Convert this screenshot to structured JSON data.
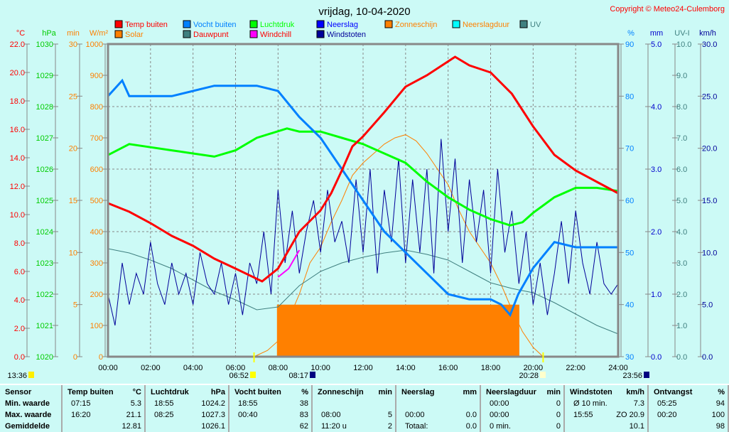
{
  "title": "vrijdag, 10-04-2020",
  "copyright": "Copyright © Meteo24-Culemborg",
  "legend": [
    {
      "label": "Temp buiten",
      "color": "#ff0000",
      "text": "#ff0000"
    },
    {
      "label": "Solar",
      "color": "#ff8000",
      "text": "#ff8000"
    },
    {
      "label": "Vocht buiten",
      "color": "#0080ff",
      "text": "#0080ff"
    },
    {
      "label": "Dauwpunt",
      "color": "#408080",
      "text": "#ff0000"
    },
    {
      "label": "Luchtdruk",
      "color": "#00ff00",
      "text": "#00ff00"
    },
    {
      "label": "Windchill",
      "color": "#ff00ff",
      "text": "#ff0000"
    },
    {
      "label": "Neerslag",
      "color": "#0000ff",
      "text": "#0000ff"
    },
    {
      "label": "Windstoten",
      "color": "#000099",
      "text": "#000099"
    },
    {
      "label": "Zonneschijn",
      "color": "#ff8000",
      "text": "#ff8000"
    },
    {
      "label": "Neerslagduur",
      "color": "#00ffff",
      "text": "#ff8000"
    },
    {
      "label": "UV",
      "color": "#408080",
      "text": "#408080"
    }
  ],
  "chart_data": {
    "type": "line",
    "title": "vrijdag, 10-04-2020",
    "x_ticks": [
      "00:00",
      "02:00",
      "04:00",
      "06:00",
      "08:00",
      "10:00",
      "12:00",
      "14:00",
      "16:00",
      "18:00",
      "20:00",
      "22:00",
      "24:00"
    ],
    "axes": {
      "left": [
        {
          "unit": "°C",
          "range": [
            0,
            22
          ],
          "step": 2,
          "decimals": 1,
          "color": "#ff0000"
        },
        {
          "unit": "hPa",
          "range": [
            1020,
            1030
          ],
          "step": 1,
          "decimals": 0,
          "color": "#00cc00"
        },
        {
          "unit": "min",
          "range": [
            0,
            30
          ],
          "step": 5,
          "decimals": 0,
          "color": "#ff8000"
        },
        {
          "unit": "W/m²",
          "range": [
            0,
            1000
          ],
          "step": 100,
          "decimals": 0,
          "color": "#ff8000"
        }
      ],
      "right": [
        {
          "unit": "%",
          "range": [
            30,
            90
          ],
          "step": 10,
          "decimals": 0,
          "color": "#0080ff"
        },
        {
          "unit": "mm",
          "range": [
            0,
            5
          ],
          "step": 1,
          "decimals": 1,
          "color": "#0000cc"
        },
        {
          "unit": "UV-I",
          "range": [
            0,
            10
          ],
          "step": 1,
          "decimals": 1,
          "color": "#408080"
        },
        {
          "unit": "km/h",
          "range": [
            0,
            30
          ],
          "step": 5,
          "decimals": 1,
          "color": "#000099"
        }
      ]
    },
    "grid": true,
    "series": [
      {
        "name": "Zonneschijn",
        "axis": "min",
        "type": "area",
        "color": "#ff8000",
        "points": [
          [
            7.95,
            0
          ],
          [
            7.95,
            5
          ],
          [
            19.35,
            5
          ],
          [
            19.35,
            0
          ]
        ]
      },
      {
        "name": "Solar",
        "axis": "W/m²",
        "color": "#ff8000",
        "points": [
          [
            6.87,
            0
          ],
          [
            7.5,
            20
          ],
          [
            8,
            50
          ],
          [
            8.5,
            120
          ],
          [
            9,
            200
          ],
          [
            9.5,
            300
          ],
          [
            10,
            350
          ],
          [
            10.5,
            430
          ],
          [
            11,
            500
          ],
          [
            11.5,
            580
          ],
          [
            12,
            620
          ],
          [
            12.5,
            650
          ],
          [
            13,
            680
          ],
          [
            13.5,
            700
          ],
          [
            14,
            710
          ],
          [
            14.5,
            690
          ],
          [
            15,
            650
          ],
          [
            15.5,
            600
          ],
          [
            16,
            550
          ],
          [
            16.5,
            470
          ],
          [
            17,
            400
          ],
          [
            17.5,
            350
          ],
          [
            18,
            300
          ],
          [
            18.5,
            230
          ],
          [
            19,
            150
          ],
          [
            19.5,
            80
          ],
          [
            20,
            30
          ],
          [
            20.47,
            0
          ]
        ]
      },
      {
        "name": "Dauwpunt",
        "axis": "°C",
        "color": "#408080",
        "points": [
          [
            0,
            7.6
          ],
          [
            1,
            7.3
          ],
          [
            2,
            6.8
          ],
          [
            3,
            6.2
          ],
          [
            4,
            5.4
          ],
          [
            5,
            4.6
          ],
          [
            6,
            4.0
          ],
          [
            7,
            3.3
          ],
          [
            8,
            3.5
          ],
          [
            9,
            5.0
          ],
          [
            10,
            6.0
          ],
          [
            11,
            6.6
          ],
          [
            12,
            7.0
          ],
          [
            13,
            7.3
          ],
          [
            14,
            7.5
          ],
          [
            15,
            7.2
          ],
          [
            16,
            6.8
          ],
          [
            17,
            6.0
          ],
          [
            18,
            5.2
          ],
          [
            19,
            4.8
          ],
          [
            20,
            4.5
          ],
          [
            21,
            3.8
          ],
          [
            22,
            3.0
          ],
          [
            23,
            2.2
          ],
          [
            24,
            1.6
          ]
        ]
      },
      {
        "name": "Windstoten",
        "axis": "km/h",
        "color": "#000099",
        "points": [
          [
            0,
            6
          ],
          [
            0.33,
            3
          ],
          [
            0.67,
            9
          ],
          [
            1,
            5
          ],
          [
            1.33,
            8
          ],
          [
            1.67,
            6
          ],
          [
            2,
            11
          ],
          [
            2.33,
            7
          ],
          [
            2.67,
            5
          ],
          [
            3,
            9
          ],
          [
            3.33,
            6
          ],
          [
            3.67,
            8
          ],
          [
            4,
            5
          ],
          [
            4.33,
            10
          ],
          [
            4.67,
            7
          ],
          [
            5,
            6
          ],
          [
            5.33,
            9
          ],
          [
            5.67,
            5
          ],
          [
            6,
            8
          ],
          [
            6.33,
            4
          ],
          [
            6.67,
            9
          ],
          [
            7,
            7
          ],
          [
            7.33,
            12
          ],
          [
            7.67,
            6
          ],
          [
            8,
            16
          ],
          [
            8.33,
            9
          ],
          [
            8.67,
            14
          ],
          [
            9,
            8
          ],
          [
            9.33,
            12
          ],
          [
            9.67,
            15
          ],
          [
            10,
            10
          ],
          [
            10.33,
            16
          ],
          [
            10.67,
            11
          ],
          [
            11,
            13
          ],
          [
            11.33,
            9
          ],
          [
            11.67,
            17
          ],
          [
            12,
            10
          ],
          [
            12.33,
            18
          ],
          [
            12.67,
            8
          ],
          [
            13,
            16
          ],
          [
            13.33,
            11
          ],
          [
            13.67,
            19
          ],
          [
            14,
            9
          ],
          [
            14.33,
            17
          ],
          [
            14.67,
            10
          ],
          [
            15,
            18
          ],
          [
            15.33,
            8
          ],
          [
            15.67,
            20.9
          ],
          [
            16,
            12
          ],
          [
            16.33,
            19
          ],
          [
            16.67,
            9
          ],
          [
            17,
            17
          ],
          [
            17.33,
            11
          ],
          [
            17.67,
            16
          ],
          [
            18,
            8
          ],
          [
            18.33,
            18
          ],
          [
            18.67,
            10
          ],
          [
            19,
            14
          ],
          [
            19.33,
            7
          ],
          [
            19.67,
            12
          ],
          [
            20,
            5
          ],
          [
            20.33,
            9
          ],
          [
            20.67,
            4
          ],
          [
            21,
            8
          ],
          [
            21.33,
            13
          ],
          [
            21.67,
            7
          ],
          [
            22,
            14
          ],
          [
            22.33,
            9
          ],
          [
            22.67,
            6
          ],
          [
            23,
            11
          ],
          [
            23.33,
            7
          ],
          [
            23.67,
            6
          ],
          [
            24,
            7
          ]
        ]
      },
      {
        "name": "Luchtdruk",
        "axis": "hPa",
        "color": "#00ff00",
        "points": [
          [
            0,
            1026.45
          ],
          [
            1,
            1026.8
          ],
          [
            2,
            1026.7
          ],
          [
            3,
            1026.6
          ],
          [
            4,
            1026.5
          ],
          [
            5,
            1026.4
          ],
          [
            6,
            1026.6
          ],
          [
            7,
            1027.0
          ],
          [
            8.42,
            1027.3
          ],
          [
            9,
            1027.2
          ],
          [
            10,
            1027.2
          ],
          [
            11,
            1027.0
          ],
          [
            12,
            1026.8
          ],
          [
            13,
            1026.5
          ],
          [
            14,
            1026.2
          ],
          [
            15,
            1025.6
          ],
          [
            16,
            1025.1
          ],
          [
            17,
            1024.7
          ],
          [
            18,
            1024.4
          ],
          [
            18.92,
            1024.2
          ],
          [
            19.5,
            1024.3
          ],
          [
            20,
            1024.6
          ],
          [
            21,
            1025.1
          ],
          [
            22,
            1025.4
          ],
          [
            23,
            1025.4
          ],
          [
            24,
            1025.3
          ]
        ]
      },
      {
        "name": "Vocht buiten",
        "axis": "%",
        "color": "#0080ff",
        "points": [
          [
            0,
            80
          ],
          [
            0.67,
            83
          ],
          [
            1,
            80
          ],
          [
            2,
            80
          ],
          [
            3,
            80
          ],
          [
            4,
            81
          ],
          [
            5,
            82
          ],
          [
            6,
            82
          ],
          [
            7,
            82
          ],
          [
            8,
            81
          ],
          [
            9,
            76
          ],
          [
            10,
            72
          ],
          [
            11,
            66
          ],
          [
            12,
            60
          ],
          [
            13,
            54
          ],
          [
            14,
            50
          ],
          [
            15,
            46
          ],
          [
            16,
            42
          ],
          [
            17,
            41
          ],
          [
            18,
            41
          ],
          [
            18.5,
            40
          ],
          [
            18.92,
            38
          ],
          [
            19.3,
            42
          ],
          [
            20,
            47
          ],
          [
            21,
            52
          ],
          [
            22,
            51
          ],
          [
            23,
            51
          ],
          [
            24,
            51
          ]
        ]
      },
      {
        "name": "Windchill",
        "axis": "°C",
        "color": "#ff00ff",
        "points": [
          [
            8,
            5.6
          ],
          [
            8.5,
            6.2
          ],
          [
            9,
            7.5
          ]
        ]
      },
      {
        "name": "Temp buiten",
        "axis": "°C",
        "color": "#ff0000",
        "points": [
          [
            0,
            10.8
          ],
          [
            1,
            10.2
          ],
          [
            2,
            9.4
          ],
          [
            3,
            8.5
          ],
          [
            4,
            7.8
          ],
          [
            5,
            6.9
          ],
          [
            6,
            6.2
          ],
          [
            7.25,
            5.3
          ],
          [
            8,
            6.2
          ],
          [
            8.5,
            7.5
          ],
          [
            9,
            8.8
          ],
          [
            10,
            10.3
          ],
          [
            10.5,
            11.5
          ],
          [
            11,
            13.1
          ],
          [
            11.5,
            14.8
          ],
          [
            12,
            15.5
          ],
          [
            13,
            17.2
          ],
          [
            14,
            19.0
          ],
          [
            15,
            19.8
          ],
          [
            16.33,
            21.1
          ],
          [
            17,
            20.5
          ],
          [
            18,
            20.0
          ],
          [
            19,
            18.5
          ],
          [
            20,
            16.2
          ],
          [
            21,
            14.2
          ],
          [
            22,
            13.1
          ],
          [
            23,
            12.3
          ],
          [
            24,
            11.5
          ]
        ]
      }
    ],
    "markers": {
      "moonrise": "13:36",
      "sunrise": "06:52",
      "sunrise2": "08:17",
      "sunset": "20:28",
      "moonset": "23:56"
    }
  },
  "stats": {
    "columns": [
      {
        "head": [
          "Sensor",
          ""
        ],
        "rows": [
          [
            "Min. waarde",
            ""
          ],
          [
            "Max. waarde",
            ""
          ],
          [
            "Gemiddelde",
            ""
          ]
        ],
        "bold": true
      },
      {
        "head": [
          "Temp buiten",
          "°C"
        ],
        "rows": [
          [
            "07:15",
            "5.3"
          ],
          [
            "16:20",
            "21.1"
          ],
          [
            "",
            "12.81"
          ]
        ]
      },
      {
        "head": [
          "Luchtdruk",
          "hPa"
        ],
        "rows": [
          [
            "18:55",
            "1024.2"
          ],
          [
            "08:25",
            "1027.3"
          ],
          [
            "",
            "1026.1"
          ]
        ]
      },
      {
        "head": [
          "Vocht buiten",
          "%"
        ],
        "rows": [
          [
            "18:55",
            "38"
          ],
          [
            "00:40",
            "83"
          ],
          [
            "",
            "62"
          ]
        ]
      },
      {
        "head": [
          "Zonneschijn",
          "min"
        ],
        "rows": [
          [
            "",
            ""
          ],
          [
            "08:00",
            "5"
          ],
          [
            "11:20 u",
            "2"
          ]
        ]
      },
      {
        "head": [
          "Neerslag",
          "mm"
        ],
        "rows": [
          [
            "",
            ""
          ],
          [
            "00:00",
            "0.0"
          ],
          [
            "Totaal:",
            "0.0"
          ]
        ]
      },
      {
        "head": [
          "Neerslagduur",
          "min"
        ],
        "rows": [
          [
            "00:00",
            "0"
          ],
          [
            "00:00",
            "0"
          ],
          [
            "0 min.",
            "0"
          ]
        ]
      },
      {
        "head": [
          "Windstoten",
          "km/h"
        ],
        "rows": [
          [
            "Ø 10 min.",
            "7.3"
          ],
          [
            "15:55",
            "ZO 20.9"
          ],
          [
            "",
            "10.1"
          ]
        ]
      },
      {
        "head": [
          "Ontvangst",
          "%"
        ],
        "rows": [
          [
            "05:25",
            "94"
          ],
          [
            "00:20",
            "100"
          ],
          [
            "",
            "98"
          ]
        ]
      }
    ]
  }
}
